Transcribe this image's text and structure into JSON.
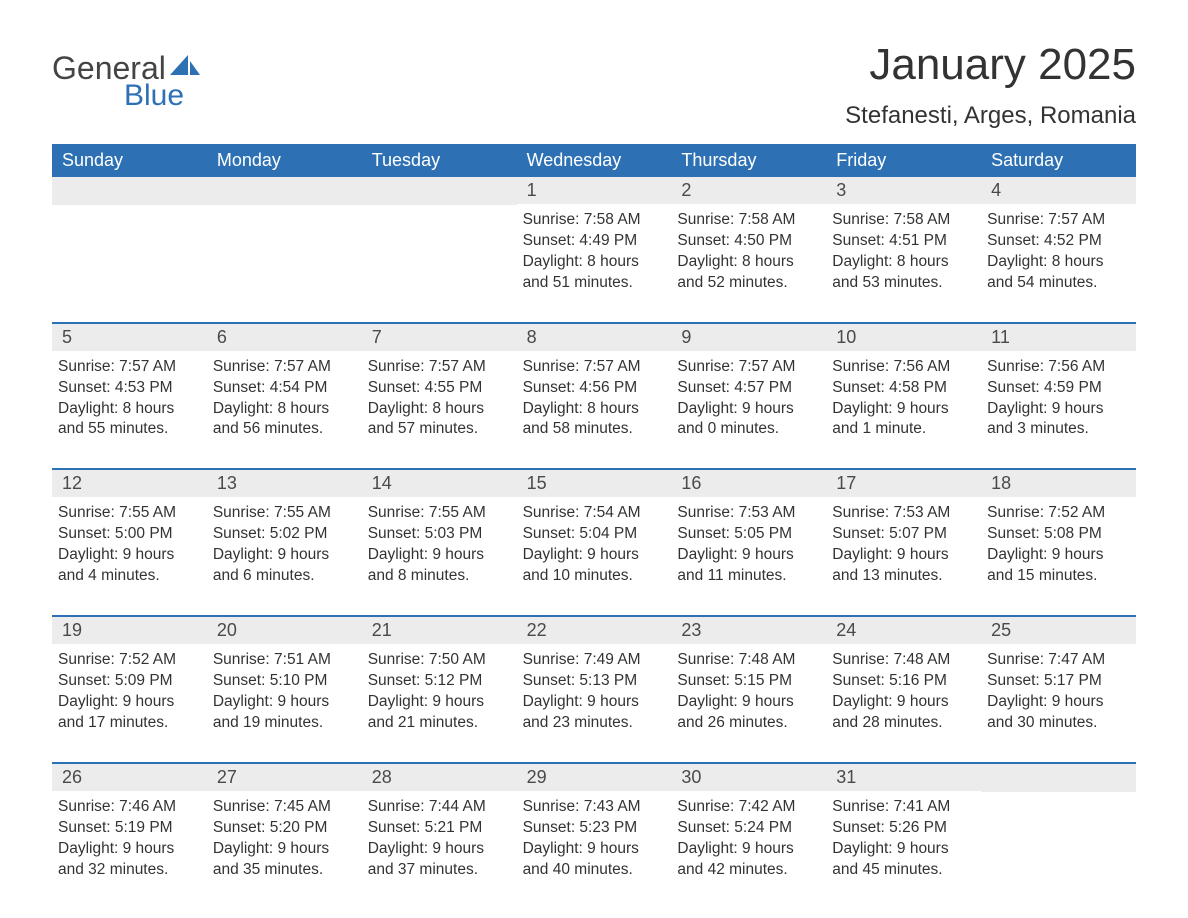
{
  "logo": {
    "word1": "General",
    "word2": "Blue"
  },
  "title": "January 2025",
  "location": "Stefanesti, Arges, Romania",
  "colors": {
    "header_bg": "#2d71b4",
    "header_text": "#ffffff",
    "daynum_bg": "#ececec",
    "daynum_text": "#4a4a4a",
    "body_text": "#333333",
    "border": "#2d71b4",
    "logo_gray": "#444444",
    "logo_blue": "#2d71b4"
  },
  "day_names": [
    "Sunday",
    "Monday",
    "Tuesday",
    "Wednesday",
    "Thursday",
    "Friday",
    "Saturday"
  ],
  "weeks": [
    [
      {
        "num": "",
        "lines": []
      },
      {
        "num": "",
        "lines": []
      },
      {
        "num": "",
        "lines": []
      },
      {
        "num": "1",
        "lines": [
          "Sunrise: 7:58 AM",
          "Sunset: 4:49 PM",
          "Daylight: 8 hours",
          "and 51 minutes."
        ]
      },
      {
        "num": "2",
        "lines": [
          "Sunrise: 7:58 AM",
          "Sunset: 4:50 PM",
          "Daylight: 8 hours",
          "and 52 minutes."
        ]
      },
      {
        "num": "3",
        "lines": [
          "Sunrise: 7:58 AM",
          "Sunset: 4:51 PM",
          "Daylight: 8 hours",
          "and 53 minutes."
        ]
      },
      {
        "num": "4",
        "lines": [
          "Sunrise: 7:57 AM",
          "Sunset: 4:52 PM",
          "Daylight: 8 hours",
          "and 54 minutes."
        ]
      }
    ],
    [
      {
        "num": "5",
        "lines": [
          "Sunrise: 7:57 AM",
          "Sunset: 4:53 PM",
          "Daylight: 8 hours",
          "and 55 minutes."
        ]
      },
      {
        "num": "6",
        "lines": [
          "Sunrise: 7:57 AM",
          "Sunset: 4:54 PM",
          "Daylight: 8 hours",
          "and 56 minutes."
        ]
      },
      {
        "num": "7",
        "lines": [
          "Sunrise: 7:57 AM",
          "Sunset: 4:55 PM",
          "Daylight: 8 hours",
          "and 57 minutes."
        ]
      },
      {
        "num": "8",
        "lines": [
          "Sunrise: 7:57 AM",
          "Sunset: 4:56 PM",
          "Daylight: 8 hours",
          "and 58 minutes."
        ]
      },
      {
        "num": "9",
        "lines": [
          "Sunrise: 7:57 AM",
          "Sunset: 4:57 PM",
          "Daylight: 9 hours",
          "and 0 minutes."
        ]
      },
      {
        "num": "10",
        "lines": [
          "Sunrise: 7:56 AM",
          "Sunset: 4:58 PM",
          "Daylight: 9 hours",
          "and 1 minute."
        ]
      },
      {
        "num": "11",
        "lines": [
          "Sunrise: 7:56 AM",
          "Sunset: 4:59 PM",
          "Daylight: 9 hours",
          "and 3 minutes."
        ]
      }
    ],
    [
      {
        "num": "12",
        "lines": [
          "Sunrise: 7:55 AM",
          "Sunset: 5:00 PM",
          "Daylight: 9 hours",
          "and 4 minutes."
        ]
      },
      {
        "num": "13",
        "lines": [
          "Sunrise: 7:55 AM",
          "Sunset: 5:02 PM",
          "Daylight: 9 hours",
          "and 6 minutes."
        ]
      },
      {
        "num": "14",
        "lines": [
          "Sunrise: 7:55 AM",
          "Sunset: 5:03 PM",
          "Daylight: 9 hours",
          "and 8 minutes."
        ]
      },
      {
        "num": "15",
        "lines": [
          "Sunrise: 7:54 AM",
          "Sunset: 5:04 PM",
          "Daylight: 9 hours",
          "and 10 minutes."
        ]
      },
      {
        "num": "16",
        "lines": [
          "Sunrise: 7:53 AM",
          "Sunset: 5:05 PM",
          "Daylight: 9 hours",
          "and 11 minutes."
        ]
      },
      {
        "num": "17",
        "lines": [
          "Sunrise: 7:53 AM",
          "Sunset: 5:07 PM",
          "Daylight: 9 hours",
          "and 13 minutes."
        ]
      },
      {
        "num": "18",
        "lines": [
          "Sunrise: 7:52 AM",
          "Sunset: 5:08 PM",
          "Daylight: 9 hours",
          "and 15 minutes."
        ]
      }
    ],
    [
      {
        "num": "19",
        "lines": [
          "Sunrise: 7:52 AM",
          "Sunset: 5:09 PM",
          "Daylight: 9 hours",
          "and 17 minutes."
        ]
      },
      {
        "num": "20",
        "lines": [
          "Sunrise: 7:51 AM",
          "Sunset: 5:10 PM",
          "Daylight: 9 hours",
          "and 19 minutes."
        ]
      },
      {
        "num": "21",
        "lines": [
          "Sunrise: 7:50 AM",
          "Sunset: 5:12 PM",
          "Daylight: 9 hours",
          "and 21 minutes."
        ]
      },
      {
        "num": "22",
        "lines": [
          "Sunrise: 7:49 AM",
          "Sunset: 5:13 PM",
          "Daylight: 9 hours",
          "and 23 minutes."
        ]
      },
      {
        "num": "23",
        "lines": [
          "Sunrise: 7:48 AM",
          "Sunset: 5:15 PM",
          "Daylight: 9 hours",
          "and 26 minutes."
        ]
      },
      {
        "num": "24",
        "lines": [
          "Sunrise: 7:48 AM",
          "Sunset: 5:16 PM",
          "Daylight: 9 hours",
          "and 28 minutes."
        ]
      },
      {
        "num": "25",
        "lines": [
          "Sunrise: 7:47 AM",
          "Sunset: 5:17 PM",
          "Daylight: 9 hours",
          "and 30 minutes."
        ]
      }
    ],
    [
      {
        "num": "26",
        "lines": [
          "Sunrise: 7:46 AM",
          "Sunset: 5:19 PM",
          "Daylight: 9 hours",
          "and 32 minutes."
        ]
      },
      {
        "num": "27",
        "lines": [
          "Sunrise: 7:45 AM",
          "Sunset: 5:20 PM",
          "Daylight: 9 hours",
          "and 35 minutes."
        ]
      },
      {
        "num": "28",
        "lines": [
          "Sunrise: 7:44 AM",
          "Sunset: 5:21 PM",
          "Daylight: 9 hours",
          "and 37 minutes."
        ]
      },
      {
        "num": "29",
        "lines": [
          "Sunrise: 7:43 AM",
          "Sunset: 5:23 PM",
          "Daylight: 9 hours",
          "and 40 minutes."
        ]
      },
      {
        "num": "30",
        "lines": [
          "Sunrise: 7:42 AM",
          "Sunset: 5:24 PM",
          "Daylight: 9 hours",
          "and 42 minutes."
        ]
      },
      {
        "num": "31",
        "lines": [
          "Sunrise: 7:41 AM",
          "Sunset: 5:26 PM",
          "Daylight: 9 hours",
          "and 45 minutes."
        ]
      },
      {
        "num": "",
        "lines": []
      }
    ]
  ]
}
